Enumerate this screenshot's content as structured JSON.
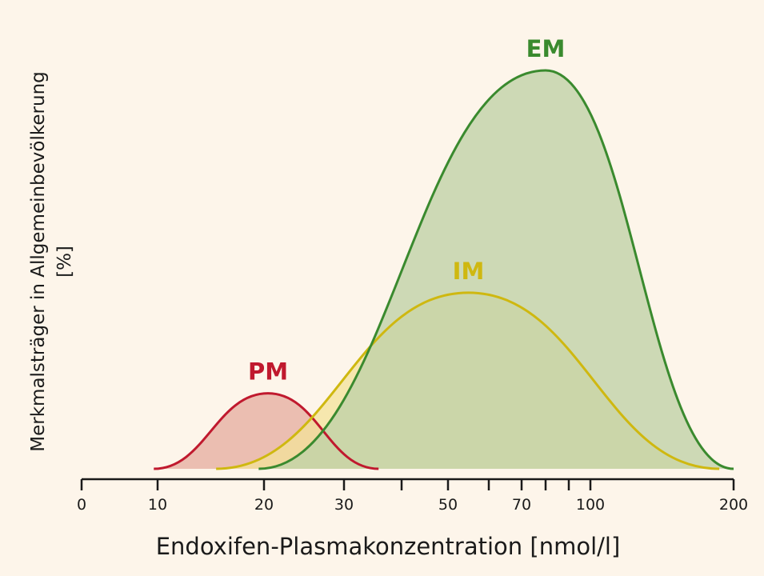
{
  "chart_data": {
    "type": "area",
    "xlabel": "Endoxifen-Plasmakonzentration [nmol/l]",
    "ylabel_line1": "Merkmalsträger in Allgemeinbevölkerung",
    "ylabel_line2": "[%]",
    "x_ticks": [
      {
        "value": 0,
        "label": "0"
      },
      {
        "value": 10,
        "label": "10"
      },
      {
        "value": 20,
        "label": "20"
      },
      {
        "value": 30,
        "label": "30"
      },
      {
        "value": 40,
        "label": ""
      },
      {
        "value": 50,
        "label": "50"
      },
      {
        "value": 60,
        "label": ""
      },
      {
        "value": 70,
        "label": "70"
      },
      {
        "value": 80,
        "label": ""
      },
      {
        "value": 90,
        "label": ""
      },
      {
        "value": 100,
        "label": "100"
      },
      {
        "value": 200,
        "label": "200"
      }
    ],
    "series": [
      {
        "name": "PM",
        "stroke": "#c0192e",
        "fill": "#e9b8ab",
        "fill_opacity": 0.9,
        "x_start": 9.5,
        "x_peak": 20.5,
        "x_end": 36,
        "peak": 18
      },
      {
        "name": "IM",
        "stroke": "#cfb810",
        "fill": "#f3e29a",
        "fill_opacity": 0.75,
        "x_start": 15.5,
        "x_peak": 55,
        "x_end": 190,
        "peak": 42
      },
      {
        "name": "EM",
        "stroke": "#3a8a2e",
        "fill": "#c0d2a8",
        "fill_opacity": 0.8,
        "x_start": 19.5,
        "x_peak": 80,
        "x_end": 200,
        "peak": 95
      }
    ],
    "colors": {
      "axis": "#1a1a1a",
      "text": "#1a1a1a"
    }
  }
}
